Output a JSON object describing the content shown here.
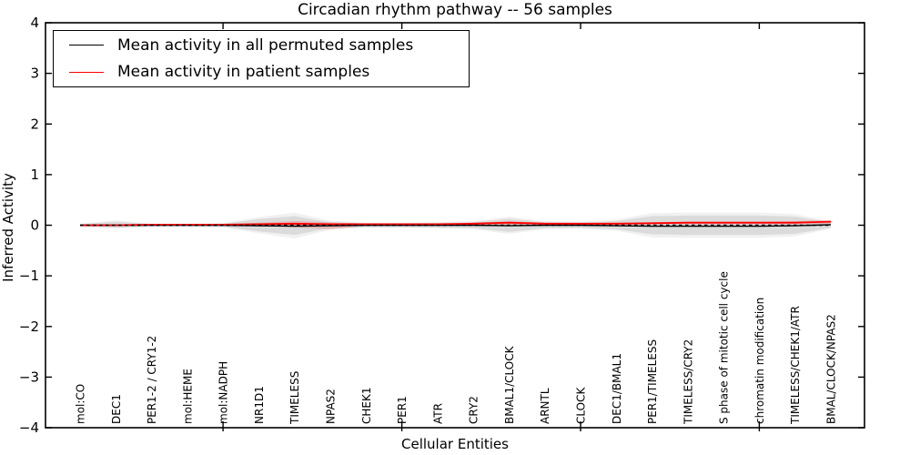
{
  "chart_data": {
    "type": "line",
    "title": "Circadian rhythm pathway -- 56 samples",
    "xlabel": "Cellular Entities",
    "ylabel": "Inferred Activity",
    "ylim": [
      -4,
      4
    ],
    "yticks": [
      4,
      3,
      2,
      1,
      0,
      -1,
      -2,
      -3,
      -4
    ],
    "xtick_category_indices": [
      4,
      9,
      14,
      19
    ],
    "grid": false,
    "legend_position": "upper left",
    "categories": [
      "mol:CO",
      "DEC1",
      "PER1-2 / CRY1-2",
      "mol:HEME",
      "mol:NADPH",
      "NR1D1",
      "TIMELESS",
      "NPAS2",
      "CHEK1",
      "PER1",
      "ATR",
      "CRY2",
      "BMAL1/CLOCK",
      "ARNTL",
      "CLOCK",
      "DEC1/BMAL1",
      "PER1/TIMELESS",
      "TIMELESS/CRY2",
      "S phase of mitotic cell cycle",
      "chromatin modification",
      "TIMELESS/CHEK1/ATR",
      "BMAL/CLOCK/NPAS2"
    ],
    "series": [
      {
        "name": "Mean activity in all permuted samples",
        "color": "#000000",
        "style": "solid",
        "values": [
          0.0,
          0.0,
          0.0,
          0.0,
          0.0,
          -0.01,
          -0.02,
          -0.01,
          0.0,
          0.0,
          0.0,
          0.0,
          -0.01,
          0.0,
          0.0,
          -0.01,
          -0.02,
          -0.02,
          -0.02,
          -0.02,
          -0.01,
          0.01
        ]
      },
      {
        "name": "Mean activity in patient samples",
        "color": "#ff0000",
        "style": "solid",
        "values": [
          0.0,
          0.0,
          0.01,
          0.01,
          0.01,
          0.02,
          0.03,
          0.02,
          0.02,
          0.02,
          0.02,
          0.03,
          0.05,
          0.03,
          0.03,
          0.03,
          0.04,
          0.05,
          0.05,
          0.05,
          0.05,
          0.07
        ]
      },
      {
        "name": "zero-reference-line",
        "color": "#000000",
        "style": "dashed",
        "values": [
          0,
          0,
          0,
          0,
          0,
          0,
          0,
          0,
          0,
          0,
          0,
          0,
          0,
          0,
          0,
          0,
          0,
          0,
          0,
          0,
          0,
          0
        ]
      }
    ],
    "bands": [
      {
        "name": "permuted-spread-outer",
        "color": "rgba(120,120,120,0.10)",
        "upper": [
          0.03,
          0.1,
          0.03,
          0.03,
          0.04,
          0.16,
          0.25,
          0.09,
          0.05,
          0.05,
          0.06,
          0.08,
          0.17,
          0.08,
          0.07,
          0.11,
          0.24,
          0.25,
          0.25,
          0.25,
          0.22,
          0.08
        ],
        "lower": [
          -0.03,
          -0.07,
          -0.03,
          -0.03,
          -0.04,
          -0.16,
          -0.26,
          -0.09,
          -0.05,
          -0.05,
          -0.06,
          -0.08,
          -0.17,
          -0.08,
          -0.07,
          -0.11,
          -0.24,
          -0.25,
          -0.25,
          -0.25,
          -0.22,
          -0.07
        ]
      },
      {
        "name": "permuted-spread-inner",
        "color": "rgba(120,120,120,0.18)",
        "upper": [
          0.02,
          0.07,
          0.02,
          0.02,
          0.03,
          0.12,
          0.18,
          0.06,
          0.04,
          0.04,
          0.05,
          0.06,
          0.13,
          0.06,
          0.05,
          0.08,
          0.18,
          0.19,
          0.19,
          0.19,
          0.17,
          0.06
        ],
        "lower": [
          -0.02,
          -0.05,
          -0.02,
          -0.02,
          -0.03,
          -0.12,
          -0.19,
          -0.06,
          -0.04,
          -0.04,
          -0.05,
          -0.06,
          -0.13,
          -0.06,
          -0.05,
          -0.08,
          -0.18,
          -0.19,
          -0.19,
          -0.19,
          -0.17,
          -0.05
        ]
      },
      {
        "name": "patient-spread",
        "color": "rgba(255,0,0,0.18)",
        "upper": [
          0.01,
          0.01,
          0.02,
          0.02,
          0.02,
          0.05,
          0.08,
          0.06,
          0.03,
          0.03,
          0.03,
          0.05,
          0.08,
          0.05,
          0.04,
          0.05,
          0.06,
          0.07,
          0.07,
          0.07,
          0.08,
          0.1
        ],
        "lower": [
          -0.01,
          -0.01,
          0.0,
          0.0,
          0.0,
          -0.01,
          -0.04,
          -0.08,
          -0.01,
          -0.01,
          -0.01,
          0.0,
          0.01,
          0.01,
          0.01,
          0.01,
          0.02,
          0.02,
          0.02,
          0.02,
          0.02,
          0.03
        ]
      }
    ],
    "colors": {
      "frame": "#000000",
      "background": "#ffffff",
      "permuted_line": "#000000",
      "patient_line": "#ff0000"
    }
  },
  "legend": {
    "entries": [
      {
        "label": "Mean activity in all permuted samples",
        "color": "#000000"
      },
      {
        "label": "Mean activity in patient samples",
        "color": "#ff0000"
      }
    ]
  }
}
